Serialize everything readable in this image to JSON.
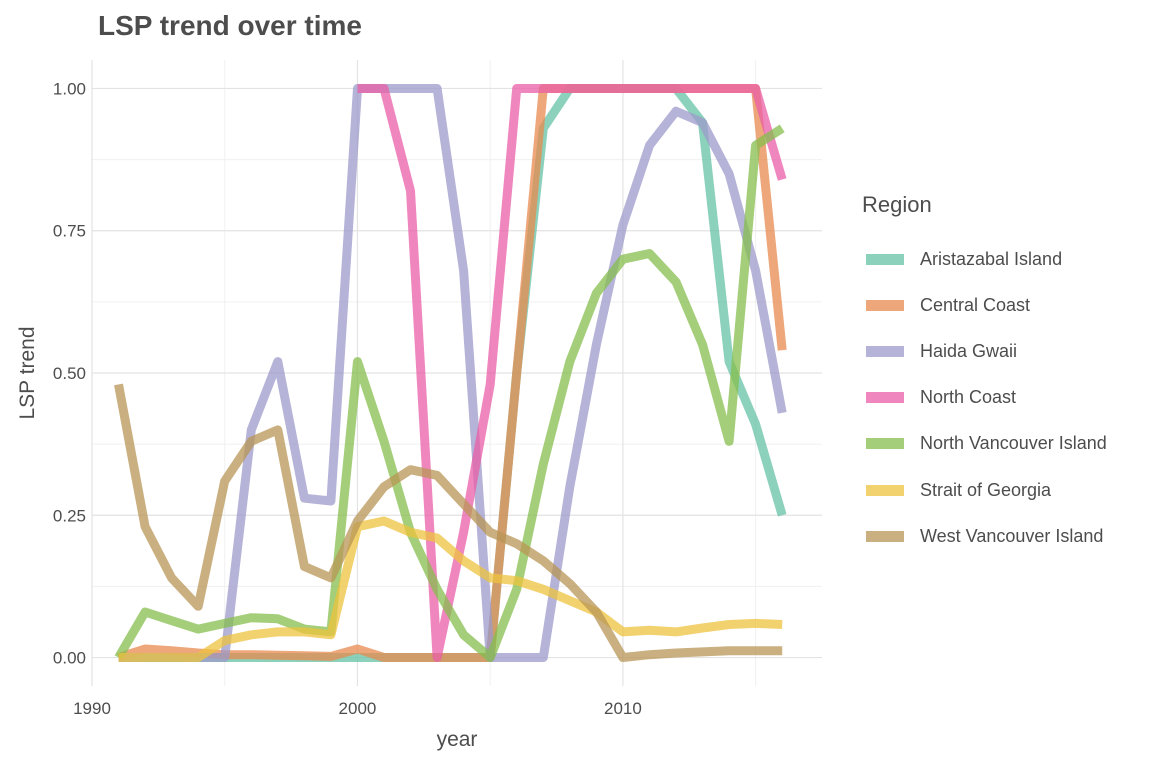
{
  "chart_data": {
    "type": "line",
    "title": "LSP trend over time",
    "xlabel": "year",
    "ylabel": "LSP trend",
    "xlim": [
      1990,
      2017.5
    ],
    "ylim": [
      -0.05,
      1.05
    ],
    "x_ticks": [
      1990,
      2000,
      2010
    ],
    "x_tick_labels": [
      "1990",
      "2000",
      "2010"
    ],
    "y_ticks": [
      0,
      0.25,
      0.5,
      0.75,
      1.0
    ],
    "y_tick_labels": [
      "0.00",
      "0.25",
      "0.50",
      "0.75",
      "1.00"
    ],
    "grid": true,
    "legend_title": "Region",
    "legend_position": "right",
    "x": [
      1991,
      1992,
      1993,
      1994,
      1995,
      1996,
      1997,
      1998,
      1999,
      2000,
      2001,
      2002,
      2003,
      2004,
      2005,
      2006,
      2007,
      2008,
      2009,
      2010,
      2011,
      2012,
      2013,
      2014,
      2015,
      2016
    ],
    "series": [
      {
        "name": "Aristazabal Island",
        "color": "#66c2a5",
        "values": [
          0,
          0,
          0,
          0,
          0,
          0,
          0,
          0,
          0,
          0,
          0,
          0,
          0,
          0,
          0,
          0.5,
          0.93,
          1.0,
          1.0,
          1.0,
          1.0,
          1.0,
          0.94,
          0.52,
          0.41,
          0.25
        ]
      },
      {
        "name": "Central Coast",
        "color": "#e78a4e",
        "values": [
          0,
          0.015,
          0.012,
          0.008,
          0.005,
          0.005,
          0.004,
          0.003,
          0.002,
          0.015,
          0,
          0,
          0,
          0,
          0,
          0.5,
          1.0,
          1.0,
          1.0,
          1.0,
          1.0,
          1.0,
          1.0,
          1.0,
          1.0,
          0.54
        ]
      },
      {
        "name": "Haida Gwaii",
        "color": "#9c9ac9",
        "values": [
          0,
          0,
          0,
          0,
          0,
          0.4,
          0.52,
          0.28,
          0.275,
          1.0,
          1.0,
          1.0,
          1.0,
          0.68,
          0,
          0,
          0,
          0.3,
          0.55,
          0.76,
          0.9,
          0.96,
          0.94,
          0.85,
          0.68,
          0.43
        ]
      },
      {
        "name": "North Coast",
        "color": "#ea5fa8",
        "values": [
          null,
          null,
          null,
          null,
          null,
          null,
          null,
          null,
          null,
          1.0,
          1.0,
          0.82,
          0,
          0.22,
          0.48,
          1.0,
          1.0,
          1.0,
          1.0,
          1.0,
          1.0,
          1.0,
          1.0,
          1.0,
          1.0,
          0.84
        ]
      },
      {
        "name": "North Vancouver Island",
        "color": "#86be4e",
        "values": [
          0.0,
          0.08,
          0.065,
          0.05,
          0.06,
          0.07,
          0.068,
          0.05,
          0.045,
          0.52,
          0.38,
          0.22,
          0.12,
          0.04,
          0,
          0.12,
          0.34,
          0.52,
          0.64,
          0.7,
          0.71,
          0.66,
          0.55,
          0.38,
          0.9,
          0.93
        ]
      },
      {
        "name": "Strait of Georgia",
        "color": "#edc33e",
        "values": [
          0,
          0,
          0,
          0,
          0.03,
          0.04,
          0.045,
          0.045,
          0.04,
          0.23,
          0.24,
          0.22,
          0.21,
          0.17,
          0.14,
          0.135,
          0.12,
          0.1,
          0.08,
          0.045,
          0.048,
          0.045,
          0.052,
          0.058,
          0.06,
          0.058
        ]
      },
      {
        "name": "West Vancouver Island",
        "color": "#b89655",
        "values": [
          0.48,
          0.23,
          0.14,
          0.09,
          0.31,
          0.38,
          0.4,
          0.16,
          0.14,
          0.24,
          0.3,
          0.33,
          0.32,
          0.27,
          0.22,
          0.2,
          0.17,
          0.13,
          0.08,
          0,
          0.005,
          0.008,
          0.01,
          0.012,
          0.012,
          0.012
        ]
      }
    ]
  }
}
